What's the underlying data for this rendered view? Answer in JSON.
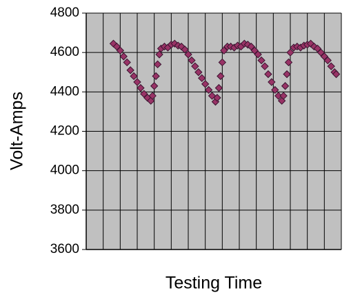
{
  "chart_data": {
    "type": "scatter",
    "x_label": "Testing Time",
    "y_label": "Volt-Amps",
    "xlim": [
      0,
      15
    ],
    "xticks": [
      0,
      1,
      2,
      3,
      4,
      5,
      6,
      7,
      8,
      9,
      10,
      11,
      12,
      13,
      14,
      15
    ],
    "ylim": [
      3600,
      4800
    ],
    "yticks": [
      3600,
      3800,
      4000,
      4200,
      4400,
      4600,
      4800
    ],
    "grid": true,
    "plot_background": "#c0c0c0",
    "series": [
      {
        "color": "#993366",
        "x": [
          1.6,
          1.8,
          2.0,
          2.2,
          2.4,
          2.6,
          2.8,
          3.0,
          3.2,
          3.4,
          3.6,
          3.8,
          3.9,
          4.0,
          4.1,
          4.2,
          4.3,
          4.4,
          4.6,
          4.8,
          5.0,
          5.2,
          5.4,
          5.6,
          5.8,
          6.0,
          6.2,
          6.4,
          6.6,
          6.8,
          7.0,
          7.2,
          7.4,
          7.6,
          7.7,
          7.8,
          7.9,
          8.0,
          8.1,
          8.3,
          8.5,
          8.7,
          8.9,
          9.1,
          9.3,
          9.5,
          9.7,
          9.9,
          10.1,
          10.3,
          10.5,
          10.7,
          10.9,
          11.1,
          11.3,
          11.5,
          11.6,
          11.7,
          11.8,
          11.9,
          12.0,
          12.2,
          12.4,
          12.6,
          12.8,
          13.0,
          13.2,
          13.4,
          13.6,
          13.8,
          14.0,
          14.2,
          14.4,
          14.6,
          14.7
        ],
        "values": [
          4645,
          4630,
          4610,
          4580,
          4550,
          4510,
          4480,
          4450,
          4420,
          4390,
          4370,
          4355,
          4380,
          4430,
          4480,
          4540,
          4590,
          4620,
          4630,
          4625,
          4640,
          4645,
          4635,
          4630,
          4615,
          4590,
          4560,
          4530,
          4500,
          4470,
          4440,
          4410,
          4380,
          4350,
          4370,
          4420,
          4480,
          4550,
          4610,
          4630,
          4630,
          4625,
          4635,
          4630,
          4645,
          4640,
          4630,
          4610,
          4590,
          4560,
          4530,
          4490,
          4450,
          4410,
          4380,
          4355,
          4380,
          4430,
          4490,
          4550,
          4600,
          4625,
          4630,
          4625,
          4635,
          4640,
          4645,
          4630,
          4620,
          4600,
          4580,
          4560,
          4530,
          4500,
          4490
        ]
      }
    ]
  }
}
